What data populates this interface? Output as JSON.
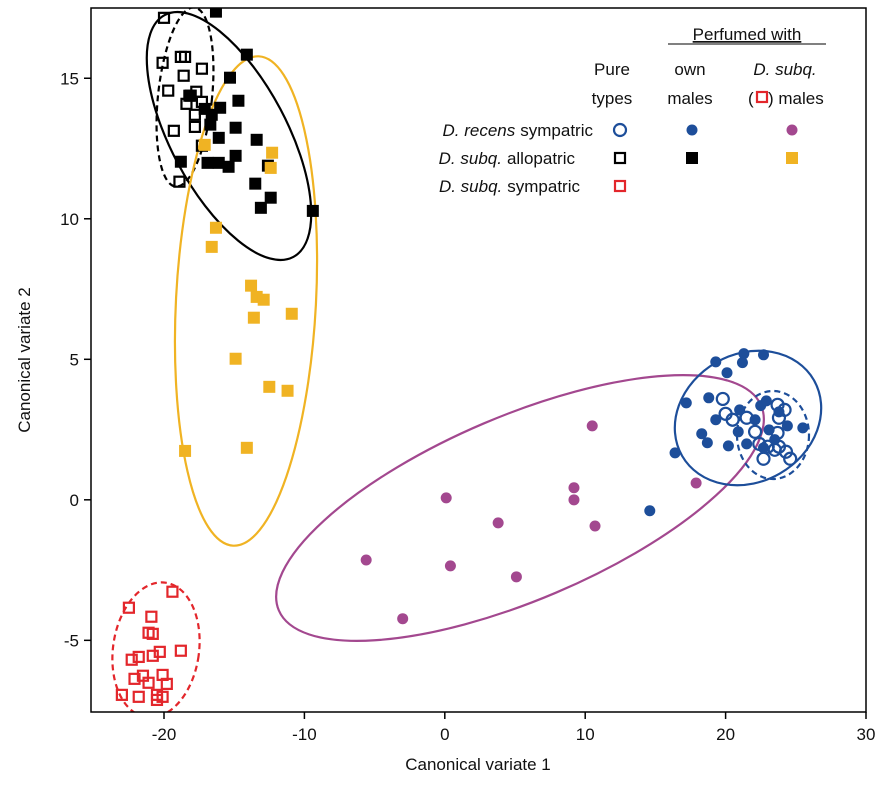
{
  "chart_data": {
    "type": "scatter",
    "xlabel": "Canonical variate 1",
    "ylabel": "Canonical variate 2",
    "xlim": [
      -25.2,
      30
    ],
    "ylim": [
      -7.55,
      17.5
    ],
    "xticks": [
      -20,
      -10,
      0,
      10,
      20,
      30
    ],
    "yticks": [
      -5,
      0,
      5,
      10,
      15
    ],
    "legend": {
      "title": "Perfumed with",
      "columns": [
        [
          "Pure",
          "types"
        ],
        [
          "own",
          "males"
        ],
        [
          "D. subq.",
          "(",
          ") males"
        ]
      ],
      "rows": [
        {
          "italic": "D. recens",
          "text": "sympatric"
        },
        {
          "italic": "D. subq.",
          "text": "allopatric"
        },
        {
          "italic": "D. subq.",
          "text": "sympatric"
        }
      ]
    },
    "series": [
      {
        "color": "#1d4e9a",
        "marker": "circle",
        "filled": false,
        "x": [
          19.8,
          20.0,
          20.5,
          21.5,
          22.1,
          22.4,
          23.0,
          23.5,
          24.3,
          24.6,
          23.7,
          23.8,
          23.7,
          24.2,
          22.7,
          23.8
        ],
        "y": [
          3.59,
          3.06,
          2.85,
          2.92,
          2.42,
          1.99,
          1.89,
          1.78,
          1.71,
          1.46,
          2.38,
          2.92,
          3.38,
          3.2,
          1.46,
          1.89
        ]
      },
      {
        "color": "#1d4e9a",
        "marker": "circle",
        "filled": true,
        "x": [
          14.6,
          16.4,
          17.2,
          18.3,
          18.7,
          18.8,
          19.3,
          20.1,
          19.3,
          21.3,
          21.2,
          22.7,
          20.2,
          20.9,
          21.5,
          22.1,
          22.5,
          22.9,
          23.1,
          23.5,
          24.4,
          25.5,
          23.8,
          21.0,
          22.7
        ],
        "y": [
          -0.39,
          1.67,
          3.45,
          2.35,
          2.03,
          3.63,
          2.85,
          4.52,
          4.91,
          5.2,
          4.88,
          5.16,
          1.92,
          2.42,
          1.99,
          2.85,
          3.35,
          3.52,
          2.49,
          2.14,
          2.63,
          2.56,
          3.13,
          3.2,
          1.85
        ]
      },
      {
        "color": "#a3488f",
        "marker": "circle",
        "filled": true,
        "x": [
          0.1,
          10.5,
          9.2,
          9.2,
          3.8,
          10.7,
          0.4,
          -5.6,
          5.1,
          -3.0,
          17.9
        ],
        "y": [
          0.07,
          2.63,
          0.43,
          0.0,
          -0.82,
          -0.93,
          -2.35,
          -2.14,
          -2.74,
          -4.23,
          0.6
        ]
      },
      {
        "color": "#000000",
        "marker": "square",
        "filled": false,
        "x": [
          -20.0,
          -20.1,
          -18.8,
          -18.5,
          -17.3,
          -18.6,
          -19.7,
          -17.7,
          -18.1,
          -17.3,
          -17.8,
          -17.8,
          -19.3,
          -17.3,
          -18.9,
          -18.4
        ],
        "y": [
          17.15,
          15.55,
          15.76,
          15.76,
          15.34,
          15.09,
          14.56,
          14.52,
          14.38,
          14.16,
          13.7,
          13.27,
          13.13,
          12.6,
          11.32,
          14.09
        ]
      },
      {
        "color": "#000000",
        "marker": "square",
        "filled": true,
        "x": [
          -16.3,
          -18.2,
          -17.1,
          -15.3,
          -14.1,
          -14.7,
          -16.6,
          -16.0,
          -16.7,
          -14.9,
          -16.1,
          -13.4,
          -16.9,
          -14.9,
          -16.1,
          -15.4,
          -18.8,
          -13.5,
          -12.4,
          -13.1,
          -9.4,
          -12.6
        ],
        "y": [
          17.37,
          14.38,
          13.91,
          15.02,
          15.84,
          14.2,
          13.7,
          13.95,
          13.35,
          13.24,
          12.88,
          12.81,
          11.99,
          12.24,
          11.99,
          11.85,
          12.03,
          11.25,
          10.75,
          10.39,
          10.28,
          11.89
        ]
      },
      {
        "color": "#f0b323",
        "marker": "square",
        "filled": true,
        "x": [
          -17.1,
          -12.3,
          -12.4,
          -16.3,
          -16.6,
          -13.8,
          -13.4,
          -12.9,
          -13.6,
          -10.9,
          -14.9,
          -12.5,
          -11.2,
          -18.5,
          -14.1
        ],
        "y": [
          12.63,
          12.35,
          11.81,
          9.68,
          9.0,
          7.62,
          7.22,
          7.12,
          6.48,
          6.62,
          5.02,
          4.02,
          3.88,
          1.74,
          1.85
        ]
      },
      {
        "color": "#e3262b",
        "marker": "square",
        "filled": false,
        "x": [
          -22.5,
          -19.4,
          -20.9,
          -21.1,
          -20.8,
          -21.8,
          -22.3,
          -20.3,
          -18.8,
          -21.5,
          -22.1,
          -20.1,
          -21.1,
          -19.8,
          -23.0,
          -21.8,
          -20.5,
          -20.1,
          -20.5,
          -20.8
        ],
        "y": [
          -3.84,
          -3.27,
          -4.16,
          -4.73,
          -4.77,
          -5.59,
          -5.69,
          -5.41,
          -5.37,
          -6.26,
          -6.37,
          -6.23,
          -6.51,
          -6.55,
          -6.94,
          -7.01,
          -6.94,
          -7.01,
          -7.12,
          -5.55
        ]
      }
    ]
  }
}
